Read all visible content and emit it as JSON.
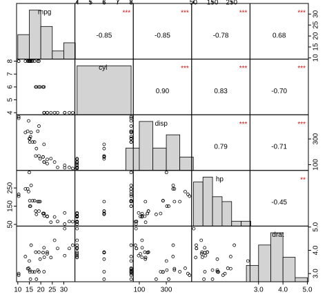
{
  "chart_data": {
    "type": "correlation_matrix",
    "variables": [
      {
        "name": "mpg",
        "lim": [
          9.46,
          34.84
        ],
        "ticks": [
          10,
          15,
          20,
          25,
          30
        ],
        "values": [
          21,
          21,
          22.8,
          21.4,
          18.7,
          18.1,
          14.3,
          24.4,
          22.8,
          19.2,
          17.8,
          16.4,
          17.3,
          15.2,
          10.4,
          10.4,
          14.7,
          32.4,
          30.4,
          33.9,
          21.5,
          15.5,
          15.2,
          13.3,
          19.2,
          27.3,
          26,
          30.4,
          15.8,
          19.7,
          15,
          21.4
        ],
        "hist": {
          "bins": [
            10,
            15,
            20,
            25,
            30,
            35
          ],
          "counts": [
            6,
            12,
            8,
            2,
            4
          ]
        }
      },
      {
        "name": "cyl",
        "lim": [
          3.84,
          8.16
        ],
        "ticks": [
          4,
          5,
          6,
          7,
          8
        ],
        "values": [
          6,
          6,
          4,
          6,
          8,
          6,
          8,
          4,
          4,
          6,
          6,
          8,
          8,
          8,
          8,
          8,
          8,
          4,
          4,
          4,
          4,
          8,
          8,
          8,
          8,
          4,
          4,
          4,
          8,
          6,
          8,
          4
        ],
        "hist": {
          "bins": [
            4,
            8
          ],
          "counts": [
            32
          ]
        }
      },
      {
        "name": "disp",
        "lim": [
          55.4,
          487.7
        ],
        "ticks": [
          100,
          300
        ],
        "values": [
          160,
          160,
          108,
          258,
          360,
          225,
          360,
          146.7,
          140.8,
          167.6,
          167.6,
          275.8,
          275.8,
          275.8,
          472,
          460,
          440,
          78.7,
          75.7,
          71.1,
          120.1,
          318,
          304,
          350,
          400,
          79,
          120.3,
          95.1,
          351,
          145,
          301,
          121
        ],
        "hist": {
          "bins": [
            0,
            100,
            200,
            300,
            400,
            500
          ],
          "counts": [
            5,
            11,
            5,
            8,
            3
          ]
        }
      },
      {
        "name": "hp",
        "lim": [
          40.8,
          346.2
        ],
        "ticks": [
          50,
          150,
          250
        ],
        "values": [
          110,
          110,
          93,
          110,
          175,
          105,
          245,
          62,
          95,
          123,
          123,
          180,
          180,
          180,
          205,
          215,
          230,
          66,
          52,
          65,
          97,
          150,
          150,
          245,
          175,
          66,
          91,
          113,
          264,
          175,
          335,
          109
        ],
        "hist": {
          "bins": [
            50,
            100,
            150,
            200,
            250,
            300,
            350
          ],
          "counts": [
            9,
            10,
            6,
            5,
            1,
            1
          ]
        }
      },
      {
        "name": "drat",
        "lim": [
          2.65,
          5.04
        ],
        "ticks": [
          {
            "value": 3,
            "label": "3.0"
          },
          {
            "value": 4,
            "label": "4.0"
          },
          {
            "value": 5,
            "label": "5.0"
          }
        ],
        "values": [
          3.9,
          3.9,
          3.85,
          3.08,
          3.15,
          2.76,
          3.21,
          3.69,
          3.92,
          3.92,
          3.92,
          3.07,
          3.07,
          3.07,
          2.93,
          3,
          3.23,
          4.08,
          4.93,
          4.22,
          3.7,
          2.76,
          3.15,
          3.73,
          3.08,
          4.08,
          4.43,
          3.77,
          4.22,
          3.62,
          3.54,
          4.11
        ],
        "hist": {
          "bins": [
            2.5,
            3,
            3.5,
            4,
            4.5,
            5
          ],
          "counts": [
            4,
            9,
            12,
            6,
            1
          ]
        }
      }
    ],
    "correlations": {
      "values": [
        -0.85,
        -0.85,
        -0.78,
        0.68,
        0.9,
        0.83,
        -0.7,
        0.79,
        -0.71,
        -0.45
      ],
      "value_labels": [
        "-0.85",
        "-0.85",
        "-0.78",
        "0.68",
        "0.90",
        "0.83",
        "-0.70",
        "0.79",
        "-0.71",
        "-0.45"
      ],
      "stars": [
        "***",
        "***",
        "***",
        "***",
        "***",
        "***",
        "***",
        "***",
        "***",
        "**"
      ],
      "star_color": "#d01010"
    },
    "point_color": "#000000",
    "hist_color": "#d3d3d3"
  }
}
